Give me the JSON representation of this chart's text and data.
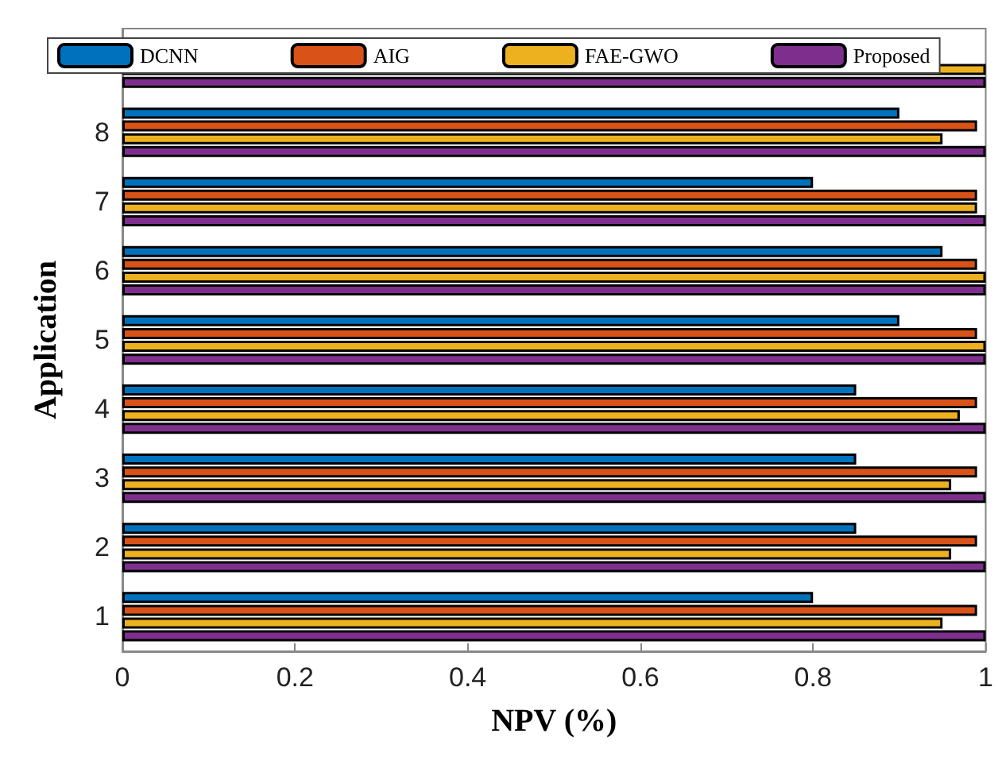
{
  "chart_data": {
    "type": "bar",
    "orientation": "horizontal",
    "xlabel": "NPV (%)",
    "ylabel": "Application",
    "categories": [
      null,
      "8",
      "7",
      "6",
      "5",
      "4",
      "3",
      "2",
      "1"
    ],
    "series": [
      {
        "name": "DCNN",
        "color": "#0072bd",
        "values": [
          null,
          0.9,
          0.8,
          0.95,
          0.9,
          0.85,
          0.85,
          0.85,
          0.8
        ]
      },
      {
        "name": "AIG",
        "color": "#d95319",
        "values": [
          null,
          0.99,
          0.99,
          0.99,
          0.99,
          0.99,
          0.99,
          0.99,
          0.99
        ]
      },
      {
        "name": "FAE-GWO",
        "color": "#edb120",
        "values": [
          1.0,
          0.95,
          0.99,
          1.0,
          1.0,
          0.97,
          0.96,
          0.96,
          0.95
        ]
      },
      {
        "name": "Proposed",
        "color": "#7e2f8e",
        "values": [
          1.0,
          1.0,
          1.0,
          1.0,
          1.0,
          1.0,
          1.0,
          1.0,
          1.0
        ]
      }
    ],
    "xlim": [
      0,
      1
    ],
    "xticks": [
      0,
      0.2,
      0.4,
      0.6,
      0.8,
      1
    ],
    "grid": false,
    "legend": "top"
  }
}
